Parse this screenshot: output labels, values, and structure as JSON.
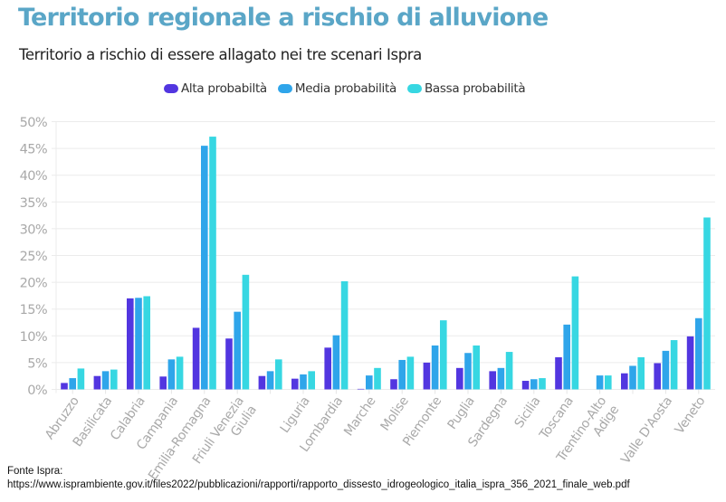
{
  "header": {
    "title": "Territorio regionale a rischio di alluvione",
    "subtitle": "Territorio a rischio di essere allagato nei tre scenari Ispra"
  },
  "legend": [
    {
      "label": "Alta probabiltà",
      "color": "#5236e0"
    },
    {
      "label": "Media probabilità",
      "color": "#2fa5ea"
    },
    {
      "label": "Bassa probabilità",
      "color": "#37d7e2"
    }
  ],
  "footer": {
    "line1": "Fonte Ispra:",
    "line2": "https://www.isprambiente.gov.it/files2022/pubblicazioni/rapporti/rapporto_dissesto_idrogeologico_italia_ispra_356_2021_finale_web.pdf"
  },
  "chart_data": {
    "type": "bar",
    "title": "Territorio regionale a rischio di alluvione",
    "subtitle": "Territorio a rischio di essere allagato nei tre scenari Ispra",
    "xlabel": "",
    "ylabel": "",
    "ylim": [
      0,
      50
    ],
    "yticks": [
      "0%",
      "5%",
      "10%",
      "15%",
      "20%",
      "25%",
      "30%",
      "35%",
      "40%",
      "45%",
      "50%"
    ],
    "ytick_values": [
      0,
      5,
      10,
      15,
      20,
      25,
      30,
      35,
      40,
      45,
      50
    ],
    "grid": true,
    "legend_position": "top-center",
    "categories": [
      [
        "Abruzzo"
      ],
      [
        "Basilicata"
      ],
      [
        "Calabria"
      ],
      [
        "Campania"
      ],
      [
        "Emilia-Romagna"
      ],
      [
        "Friuli Venezia",
        "Giulia"
      ],
      [
        ""
      ],
      [
        "Liguria"
      ],
      [
        "Lombardia"
      ],
      [
        "Marche"
      ],
      [
        "Molise"
      ],
      [
        "Piemonte"
      ],
      [
        "Puglia"
      ],
      [
        "Sardegna"
      ],
      [
        "Sicilia"
      ],
      [
        "Toscana"
      ],
      [
        "Trentino-Alto",
        "Adige"
      ],
      [
        ""
      ],
      [
        "Valle D'Aosta"
      ],
      [
        "Veneto"
      ]
    ],
    "series": [
      {
        "name": "Alta probabiltà",
        "color": "#5236e0",
        "values": [
          1.2,
          2.5,
          17.0,
          2.4,
          11.5,
          9.5,
          2.5,
          2.0,
          7.8,
          0.1,
          1.9,
          5.0,
          4.0,
          3.4,
          1.6,
          6.0,
          0.0,
          3.0,
          4.9,
          9.9
        ]
      },
      {
        "name": "Media probabilità",
        "color": "#2fa5ea",
        "values": [
          2.1,
          3.4,
          17.1,
          5.6,
          45.5,
          14.5,
          3.4,
          2.8,
          10.1,
          2.6,
          5.5,
          8.2,
          6.8,
          4.0,
          1.9,
          12.1,
          2.6,
          4.4,
          7.2,
          13.3
        ]
      },
      {
        "name": "Bassa probabilità",
        "color": "#37d7e2",
        "values": [
          3.9,
          3.7,
          17.4,
          6.1,
          47.2,
          21.4,
          5.6,
          3.4,
          20.2,
          4.0,
          6.1,
          12.9,
          8.2,
          7.0,
          2.1,
          21.1,
          2.6,
          6.0,
          9.2,
          32.1
        ]
      }
    ]
  }
}
